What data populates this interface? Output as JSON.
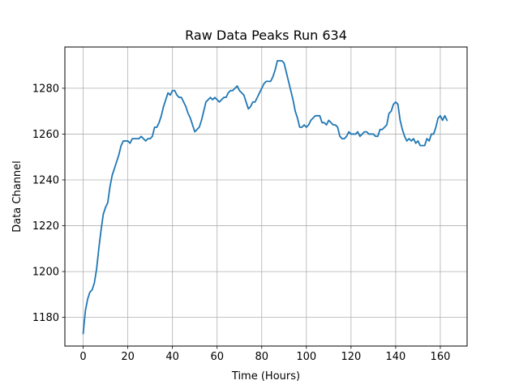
{
  "chart_data": {
    "type": "line",
    "title": "Raw Data Peaks Run 634",
    "xlabel": "Time (Hours)",
    "ylabel": "Data Channel",
    "xlim": [
      -8.2,
      172
    ],
    "ylim": [
      1167.5,
      1298
    ],
    "xticks": [
      0,
      20,
      40,
      60,
      80,
      100,
      120,
      140,
      160
    ],
    "yticks": [
      1180,
      1200,
      1220,
      1240,
      1260,
      1280
    ],
    "grid": true,
    "legend": "none",
    "series": [
      {
        "color": "#1f77b4",
        "x": [
          0,
          1,
          2,
          3,
          4,
          5,
          6,
          7,
          8,
          9,
          10,
          11,
          12,
          13,
          14,
          15,
          16,
          17,
          18,
          19,
          20,
          21,
          22,
          23,
          24,
          25,
          26,
          27,
          28,
          29,
          30,
          31,
          32,
          33,
          34,
          35,
          36,
          37,
          38,
          39,
          40,
          41,
          42,
          43,
          44,
          45,
          46,
          47,
          48,
          49,
          50,
          51,
          52,
          53,
          54,
          55,
          56,
          57,
          58,
          59,
          60,
          61,
          62,
          63,
          64,
          65,
          66,
          67,
          68,
          69,
          70,
          71,
          72,
          73,
          74,
          75,
          76,
          77,
          78,
          79,
          80,
          81,
          82,
          83,
          84,
          85,
          86,
          87,
          88,
          89,
          90,
          91,
          92,
          93,
          94,
          95,
          96,
          97,
          98,
          99,
          100,
          101,
          102,
          103,
          104,
          105,
          106,
          107,
          108,
          109,
          110,
          111,
          112,
          113,
          114,
          115,
          116,
          117,
          118,
          119,
          120,
          121,
          122,
          123,
          124,
          125,
          126,
          127,
          128,
          129,
          130,
          131,
          132,
          133,
          134,
          135,
          136,
          137,
          138,
          139,
          140,
          141,
          142,
          143,
          144,
          145,
          146,
          147,
          148,
          149,
          150,
          151,
          152,
          153,
          154,
          155,
          156,
          157,
          158,
          159,
          160,
          161,
          162,
          163
        ],
        "y": [
          1173,
          1183,
          1188,
          1191,
          1192,
          1195,
          1201,
          1210,
          1218,
          1225,
          1228,
          1230,
          1237,
          1242,
          1245,
          1248,
          1251,
          1255,
          1257,
          1257,
          1257,
          1256,
          1258,
          1258,
          1258,
          1258,
          1259,
          1258,
          1257,
          1258,
          1258,
          1259,
          1263,
          1263,
          1265,
          1268,
          1272,
          1275,
          1278,
          1277,
          1279,
          1279,
          1277,
          1276,
          1276,
          1274,
          1272,
          1269,
          1267,
          1264,
          1261,
          1262,
          1263,
          1266,
          1270,
          1274,
          1275,
          1276,
          1275,
          1276,
          1275,
          1274,
          1275,
          1276,
          1276,
          1278,
          1279,
          1279,
          1280,
          1281,
          1279,
          1278,
          1277,
          1274,
          1271,
          1272,
          1274,
          1274,
          1276,
          1278,
          1280,
          1282,
          1283,
          1283,
          1283,
          1285,
          1288,
          1292,
          1292,
          1292,
          1291,
          1287,
          1283,
          1279,
          1275,
          1270,
          1267,
          1263,
          1263,
          1264,
          1263,
          1264,
          1266,
          1267,
          1268,
          1268,
          1268,
          1265,
          1265,
          1264,
          1266,
          1265,
          1264,
          1264,
          1263,
          1259,
          1258,
          1258,
          1259,
          1261,
          1260,
          1260,
          1260,
          1261,
          1259,
          1260,
          1261,
          1261,
          1260,
          1260,
          1260,
          1259,
          1259,
          1262,
          1262,
          1263,
          1264,
          1269,
          1270,
          1273,
          1274,
          1273,
          1266,
          1262,
          1259,
          1257,
          1258,
          1257,
          1258,
          1256,
          1257,
          1255,
          1255,
          1255,
          1258,
          1257,
          1260,
          1260,
          1263,
          1267,
          1268,
          1266,
          1268,
          1266
        ]
      }
    ]
  }
}
